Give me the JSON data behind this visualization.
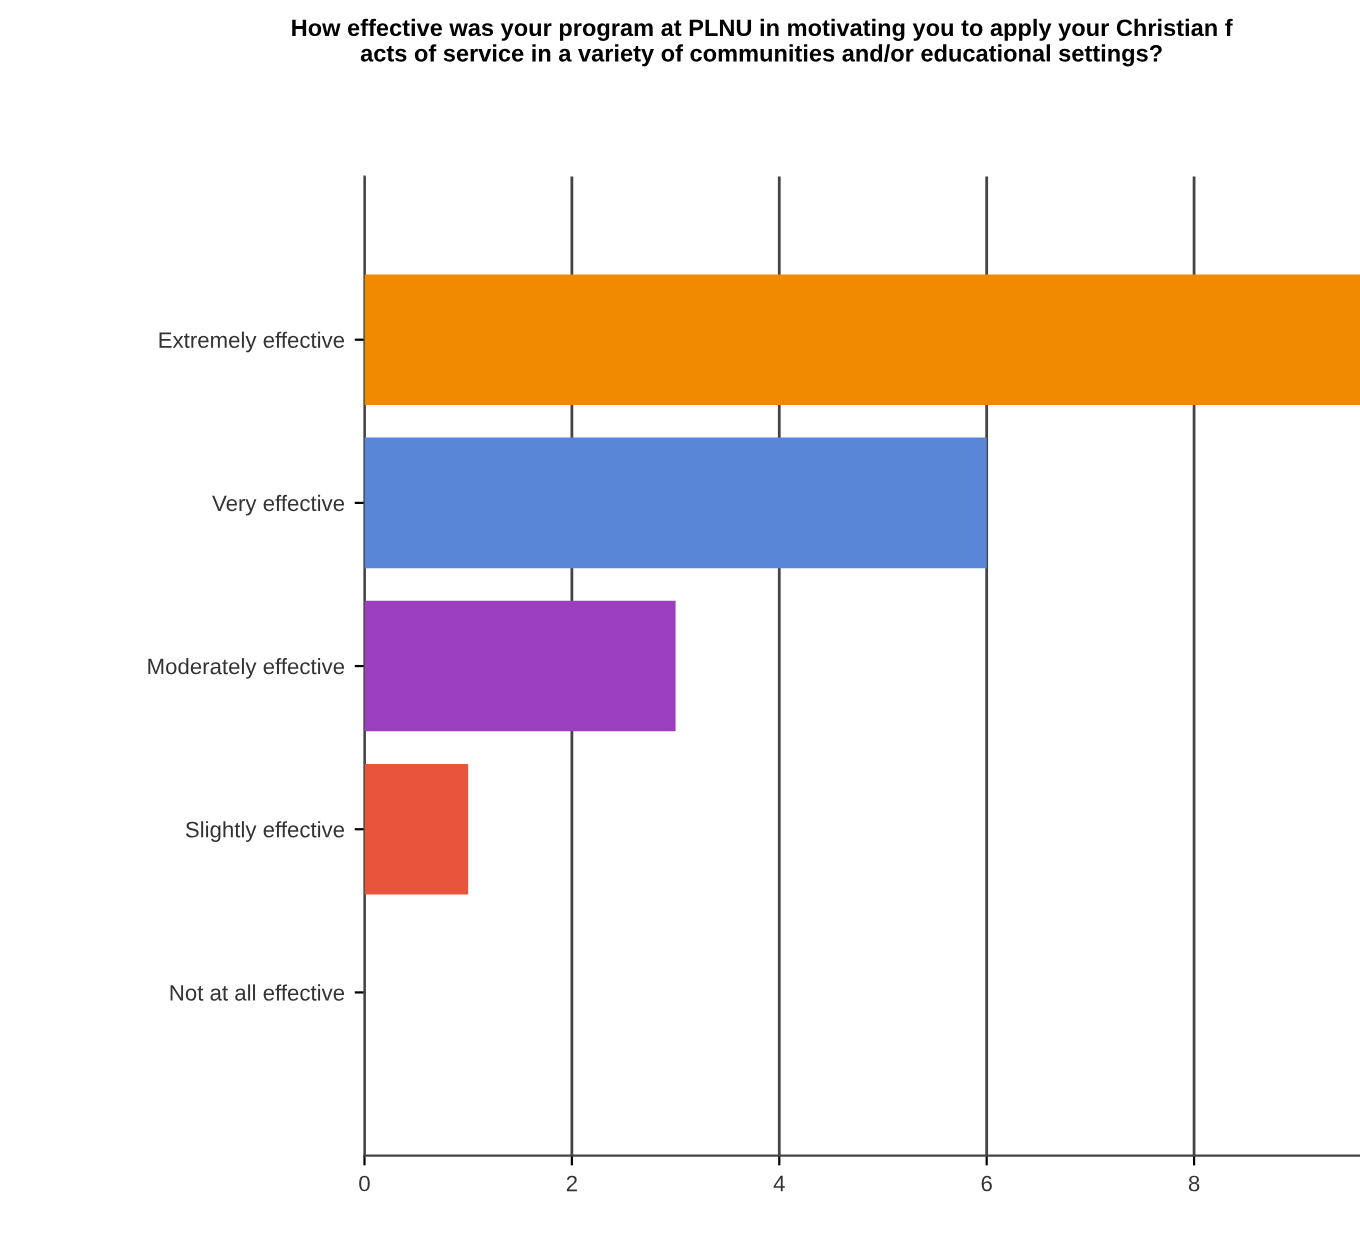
{
  "chart_data": {
    "type": "bar",
    "orientation": "horizontal",
    "title": "How effective was your program at PLNU in motivating you to apply your Christian f\nacts of service in a variety of communities and/or educational settings?",
    "categories": [
      "Extremely effective",
      "Very effective",
      "Moderately effective",
      "Slightly effective",
      "Not at all effective"
    ],
    "values": [
      9.6,
      6,
      3,
      1,
      0
    ],
    "colors": [
      "#f08a00",
      "#5a86d8",
      "#9b3fc0",
      "#e8553a",
      "#888888"
    ],
    "xlim": [
      0,
      9.6
    ],
    "xticks": [
      0,
      2,
      4,
      6,
      8
    ],
    "grid": "x",
    "legend": false
  }
}
